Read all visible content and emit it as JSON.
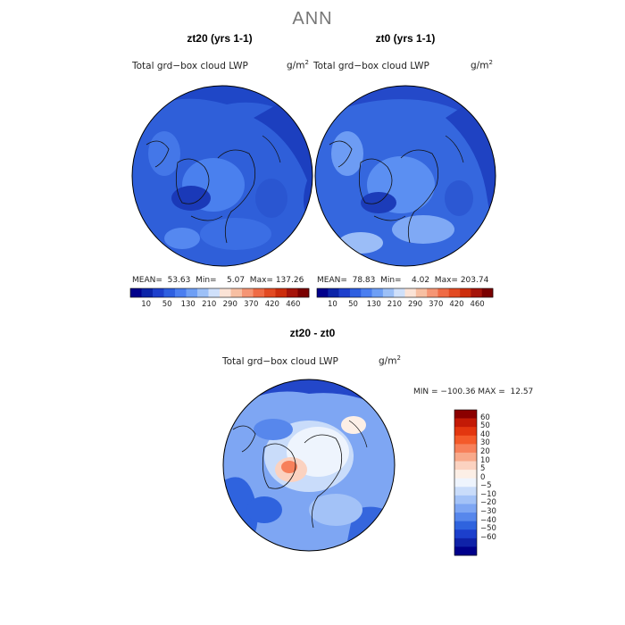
{
  "title": "ANN",
  "panels": [
    {
      "title": "zt20 (yrs 1-1)",
      "var_label": "Total grd−box cloud LWP",
      "unit_base": "g/m",
      "unit_exp": "2",
      "stats": "MEAN=  53.63  Min=    5.07  Max= 137.26",
      "base_color": "#2e5fd8"
    },
    {
      "title": "zt0 (yrs 1-1)",
      "var_label": "Total grd−box cloud LWP",
      "unit_base": "g/m",
      "unit_exp": "2",
      "stats": "MEAN=  78.83  Min=    4.02  Max= 203.74",
      "base_color": "#3a6ae0"
    }
  ],
  "colorbar_top": {
    "colors": [
      "#00008b",
      "#0b24a8",
      "#1d3fcc",
      "#2e5fe0",
      "#4a7ef0",
      "#6e9ff5",
      "#9cc0f7",
      "#cfe0fa",
      "#fbe3d6",
      "#f7bfa2",
      "#f59574",
      "#ef6b45",
      "#e24a22",
      "#cc2d0c",
      "#a5140a",
      "#7a0000"
    ],
    "tick_labels": [
      "10",
      "50",
      "130",
      "210",
      "290",
      "370",
      "420",
      "460"
    ]
  },
  "diff_panel": {
    "title": "zt20 - zt0",
    "var_label": "Total grd−box cloud LWP",
    "unit_base": "g/m",
    "unit_exp": "2",
    "stats": "MIN = −100.36 MAX =  12.57"
  },
  "colorbar_diff": {
    "colors": [
      "#8b0000",
      "#c31a06",
      "#e3360f",
      "#f45a2a",
      "#f7805a",
      "#f8a98a",
      "#fbd2c0",
      "#fcefe6",
      "#eef4fd",
      "#c9dcfa",
      "#a3c2f7",
      "#7ea6f3",
      "#5787ec",
      "#2f63de",
      "#1c3fcc",
      "#0f22a8",
      "#00008b"
    ],
    "tick_labels": [
      "60",
      "50",
      "40",
      "30",
      "20",
      "10",
      "5",
      "0",
      "−5",
      "−10",
      "−20",
      "−30",
      "−40",
      "−50",
      "−60"
    ]
  }
}
